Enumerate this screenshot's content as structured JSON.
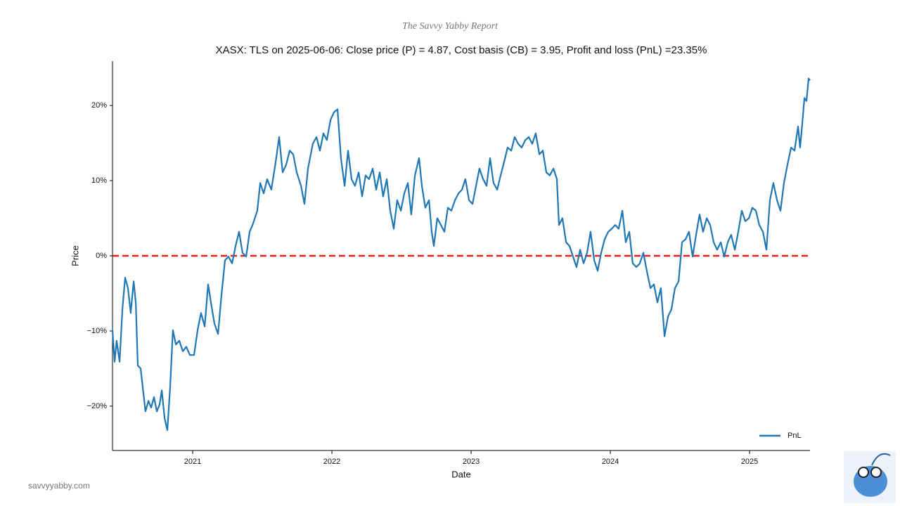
{
  "header": "The Savvy Yabby Report",
  "footer": "savvyyabby.com",
  "chart_data": {
    "type": "line",
    "title": "XASX: TLS on 2025-06-06: Close price (P) = 4.87, Cost basis (CB) = 3.95, Profit and loss (PnL) =23.35%",
    "x_label": "Date",
    "y_label": "Price",
    "x": [
      2020.424,
      2020.439,
      2020.454,
      2020.475,
      2020.495,
      2020.515,
      2020.535,
      2020.555,
      2020.576,
      2020.591,
      2020.606,
      2020.626,
      2020.646,
      2020.661,
      2020.682,
      2020.702,
      2020.722,
      2020.742,
      2020.762,
      2020.778,
      2020.798,
      2020.818,
      2020.838,
      2020.858,
      2020.879,
      2020.904,
      2020.929,
      2020.954,
      2020.98,
      2021.01,
      2021.035,
      2021.06,
      2021.086,
      2021.111,
      2021.131,
      2021.156,
      2021.182,
      2021.207,
      2021.232,
      2021.257,
      2021.283,
      2021.308,
      2021.333,
      2021.358,
      2021.384,
      2021.409,
      2021.434,
      2021.464,
      2021.485,
      2021.51,
      2021.535,
      2021.565,
      2021.596,
      2021.621,
      2021.646,
      2021.671,
      2021.697,
      2021.722,
      2021.747,
      2021.778,
      2021.803,
      2021.828,
      2021.863,
      2021.889,
      2021.914,
      2021.939,
      2021.964,
      2021.99,
      2022.015,
      2022.04,
      2022.065,
      2022.091,
      2022.116,
      2022.141,
      2022.166,
      2022.192,
      2022.217,
      2022.242,
      2022.267,
      2022.293,
      2022.318,
      2022.343,
      2022.368,
      2022.394,
      2022.419,
      2022.444,
      2022.469,
      2022.495,
      2022.52,
      2022.545,
      2022.57,
      2022.596,
      2022.626,
      2022.646,
      2022.671,
      2022.697,
      2022.717,
      2022.732,
      2022.757,
      2022.783,
      2022.808,
      2022.833,
      2022.858,
      2022.884,
      2022.909,
      2022.934,
      2022.959,
      2022.985,
      2023.01,
      2023.035,
      2023.06,
      2023.086,
      2023.111,
      2023.136,
      2023.161,
      2023.187,
      2023.212,
      2023.237,
      2023.262,
      2023.288,
      2023.313,
      2023.338,
      2023.363,
      2023.389,
      2023.414,
      2023.439,
      2023.464,
      2023.49,
      2023.515,
      2023.54,
      2023.565,
      2023.591,
      2023.616,
      2023.631,
      2023.656,
      2023.682,
      2023.707,
      2023.732,
      2023.757,
      2023.783,
      2023.808,
      2023.833,
      2023.858,
      2023.884,
      2023.909,
      2023.934,
      2023.959,
      2023.985,
      2024.01,
      2024.035,
      2024.06,
      2024.086,
      2024.111,
      2024.136,
      2024.161,
      2024.187,
      2024.212,
      2024.237,
      2024.262,
      2024.288,
      2024.313,
      2024.338,
      2024.363,
      2024.389,
      2024.414,
      2024.439,
      2024.464,
      2024.49,
      2024.515,
      2024.54,
      2024.565,
      2024.591,
      2024.616,
      2024.641,
      2024.666,
      2024.692,
      2024.717,
      2024.742,
      2024.767,
      2024.793,
      2024.818,
      2024.843,
      2024.868,
      2024.894,
      2024.919,
      2024.944,
      2024.969,
      2024.995,
      2025.02,
      2025.045,
      2025.07,
      2025.096,
      2025.121,
      2025.146,
      2025.171,
      2025.197,
      2025.222,
      2025.247,
      2025.272,
      2025.298,
      2025.323,
      2025.348,
      2025.363,
      2025.379,
      2025.394,
      2025.409,
      2025.424,
      2025.434
    ],
    "series": [
      {
        "name": "PnL",
        "color": "#1f77b4",
        "values": [
          -9.9,
          -14.1,
          -11.3,
          -14.1,
          -7.1,
          -2.9,
          -4.3,
          -7.6,
          -3.4,
          -6.2,
          -14.6,
          -15.0,
          -18.3,
          -20.7,
          -19.3,
          -20.2,
          -18.8,
          -20.7,
          -19.8,
          -17.9,
          -21.6,
          -23.2,
          -17.4,
          -9.9,
          -11.8,
          -11.3,
          -12.7,
          -12.1,
          -13.2,
          -13.2,
          -9.9,
          -7.6,
          -9.4,
          -3.8,
          -6.2,
          -9.0,
          -10.4,
          -5.2,
          -0.6,
          -0.1,
          -1.0,
          1.3,
          3.2,
          0.4,
          -0.1,
          3.2,
          4.3,
          6.0,
          9.7,
          8.3,
          10.2,
          8.8,
          12.5,
          15.8,
          11.1,
          12.1,
          14.0,
          13.5,
          11.1,
          9.3,
          6.9,
          11.6,
          14.9,
          15.8,
          14.0,
          16.3,
          15.4,
          18.1,
          19.1,
          19.5,
          13.0,
          9.3,
          14.0,
          10.2,
          9.3,
          11.1,
          7.9,
          10.7,
          10.2,
          11.6,
          8.8,
          11.1,
          7.9,
          10.2,
          6.0,
          3.6,
          7.4,
          6.0,
          8.3,
          9.7,
          5.5,
          10.7,
          13.0,
          9.3,
          6.4,
          7.4,
          3.2,
          1.3,
          5.0,
          4.1,
          3.2,
          6.4,
          6.0,
          7.4,
          8.3,
          8.8,
          10.2,
          7.4,
          6.9,
          9.3,
          11.6,
          10.2,
          9.3,
          13.0,
          9.7,
          8.8,
          10.7,
          12.5,
          14.4,
          14.0,
          15.8,
          14.9,
          14.4,
          15.4,
          15.8,
          14.9,
          16.3,
          13.5,
          14.0,
          11.1,
          10.7,
          11.6,
          10.2,
          4.1,
          5.0,
          1.8,
          1.3,
          -0.1,
          -1.5,
          0.8,
          -1.0,
          0.4,
          3.2,
          -0.6,
          -2.0,
          0.4,
          2.2,
          3.2,
          3.6,
          4.1,
          3.6,
          6.0,
          1.8,
          3.2,
          -1.0,
          -1.5,
          -1.0,
          0.4,
          -2.0,
          -4.3,
          -3.8,
          -6.2,
          -4.3,
          -10.7,
          -8.1,
          -7.1,
          -4.3,
          -3.4,
          1.8,
          2.2,
          3.2,
          -0.1,
          2.8,
          5.5,
          3.2,
          5.0,
          4.1,
          1.8,
          0.8,
          1.8,
          -0.1,
          1.8,
          2.8,
          0.8,
          3.2,
          6.0,
          4.6,
          5.0,
          6.4,
          6.0,
          4.1,
          3.2,
          0.8,
          7.4,
          9.7,
          7.4,
          6.0,
          9.7,
          12.1,
          14.4,
          14.0,
          17.2,
          14.4,
          17.7,
          21.0,
          20.6,
          23.6,
          23.35
        ]
      }
    ],
    "xlim": [
      2020.424,
      2025.434
    ],
    "xticks": [
      2021,
      2022,
      2023,
      2024,
      2025
    ],
    "ylim": [
      -25.9,
      25.9
    ],
    "yticks": [
      {
        "value": -20,
        "label": "−20%"
      },
      {
        "value": -10,
        "label": "−10%"
      },
      {
        "value": 0,
        "label": "0%"
      },
      {
        "value": 10,
        "label": "10%"
      },
      {
        "value": 20,
        "label": "20%"
      }
    ],
    "reference_line": {
      "value": 0,
      "color": "#e8221b"
    },
    "legend": "lower right"
  }
}
